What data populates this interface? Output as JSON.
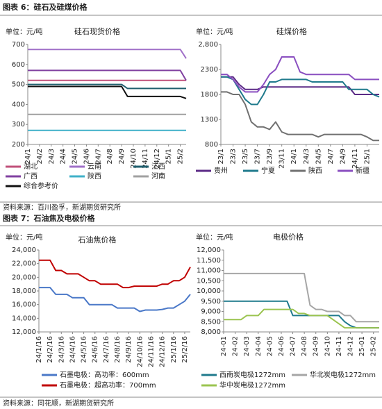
{
  "figure6_title": "图表 6：硅石及硅煤价格",
  "figure6_source": "资料来源：百川盈孚，新湖期货研究所",
  "figure7_title": "图表 7：石油焦及电极价格",
  "figure7_source": "资料来源：同花顺，新湖期货研究所",
  "chart_data": [
    {
      "type": "line",
      "title": "硅石现货价格",
      "unit": "单位：元/吨",
      "categories": [
        "24/1",
        null,
        "24/2",
        null,
        "24/3",
        null,
        "24/4",
        null,
        "24/5",
        null,
        "24/6",
        null,
        "24/7",
        null,
        "24/8",
        null,
        "24/9",
        null,
        "24/10",
        null,
        "24/11",
        null,
        "24/12",
        null,
        "25/1",
        null,
        "25/2",
        null
      ],
      "ylim": [
        200,
        700
      ],
      "yticks": [
        200,
        300,
        400,
        500,
        600,
        700
      ],
      "grid": false,
      "series": [
        {
          "name": "湖北",
          "color": "#c0507a",
          "values": [
            520,
            520,
            520,
            520,
            520,
            520,
            520,
            520,
            520,
            520,
            520,
            520,
            520,
            520,
            520,
            520,
            520,
            520,
            520,
            520,
            520,
            520,
            520,
            520,
            520,
            520,
            520,
            520
          ]
        },
        {
          "name": "云南",
          "color": "#a070c8",
          "values": [
            675,
            675,
            675,
            675,
            675,
            675,
            675,
            675,
            675,
            675,
            675,
            675,
            675,
            675,
            675,
            675,
            675,
            675,
            675,
            675,
            675,
            675,
            675,
            675,
            675,
            675,
            675,
            630
          ]
        },
        {
          "name": "江西",
          "color": "#1f5f6e",
          "values": [
            500,
            500,
            500,
            500,
            500,
            500,
            500,
            500,
            500,
            500,
            500,
            500,
            500,
            500,
            500,
            500,
            500,
            480,
            480,
            480,
            480,
            480,
            480,
            480,
            480,
            480,
            480,
            480
          ]
        },
        {
          "name": "广西",
          "color": "#8040a0",
          "values": [
            570,
            570,
            570,
            570,
            570,
            570,
            570,
            570,
            570,
            570,
            570,
            570,
            570,
            570,
            570,
            570,
            570,
            570,
            570,
            570,
            570,
            570,
            570,
            570,
            570,
            570,
            570,
            520
          ]
        },
        {
          "name": "陕西",
          "color": "#3fb0c8",
          "values": [
            270,
            270,
            270,
            270,
            270,
            270,
            270,
            270,
            270,
            270,
            270,
            270,
            270,
            270,
            270,
            270,
            270,
            270,
            270,
            270,
            270,
            270,
            270,
            270,
            270,
            270,
            270,
            270
          ]
        },
        {
          "name": "河南",
          "color": "#a0a0a0",
          "values": [
            350,
            350,
            350,
            350,
            350,
            350,
            350,
            350,
            350,
            350,
            350,
            350,
            350,
            350,
            350,
            350,
            350,
            350,
            350,
            350,
            350,
            350,
            350,
            350,
            350,
            350,
            350,
            350
          ]
        },
        {
          "name": "综合参考价",
          "color": "#111111",
          "values": [
            490,
            490,
            490,
            490,
            490,
            490,
            490,
            490,
            490,
            490,
            490,
            490,
            490,
            490,
            490,
            490,
            490,
            440,
            440,
            440,
            440,
            440,
            440,
            440,
            440,
            440,
            440,
            430
          ]
        }
      ]
    },
    {
      "type": "line",
      "title": "硅煤价格",
      "unit": "单位：元/吨",
      "categories": [
        "23/1",
        null,
        "23/3",
        null,
        "23/5",
        null,
        "23/7",
        null,
        "23/9",
        null,
        "23/11",
        null,
        "24/1",
        null,
        "24/3",
        null,
        "24/5",
        null,
        "24/7",
        null,
        "24/9",
        null,
        "24/11",
        null,
        "25/1",
        null,
        null
      ],
      "ylim": [
        800,
        2800
      ],
      "yticks": [
        800,
        1300,
        1800,
        2300,
        {
          "value": 2800,
          "label": "2,800"
        }
      ],
      "grid": false,
      "series": [
        {
          "name": "贵州",
          "color": "#5b2a86",
          "values": [
            2150,
            2150,
            2150,
            2000,
            1900,
            1900,
            1900,
            1950,
            1950,
            1950,
            1950,
            1950,
            1950,
            1950,
            1950,
            1950,
            1950,
            1950,
            1950,
            1950,
            1950,
            1950,
            1800,
            1800,
            1800,
            1800,
            1800
          ]
        },
        {
          "name": "宁夏",
          "color": "#1f7a8c",
          "values": [
            2150,
            2150,
            2100,
            1900,
            1700,
            1600,
            1600,
            1800,
            2050,
            2050,
            2100,
            2100,
            2100,
            2100,
            2100,
            2050,
            2050,
            2050,
            2050,
            2050,
            2050,
            1900,
            1900,
            1900,
            1900,
            1800,
            1750
          ]
        },
        {
          "name": "陕西",
          "color": "#707070",
          "values": [
            1850,
            1850,
            1800,
            1800,
            1600,
            1250,
            1150,
            1150,
            1100,
            1250,
            1050,
            1000,
            1000,
            1000,
            1000,
            1000,
            950,
            1000,
            1000,
            1000,
            1000,
            1000,
            1000,
            1000,
            950,
            880,
            880
          ]
        },
        {
          "name": "新疆",
          "color": "#8a4fc0",
          "values": [
            2200,
            2200,
            2100,
            1950,
            1850,
            1850,
            1850,
            2000,
            2200,
            2300,
            2550,
            2550,
            2550,
            2250,
            2200,
            2200,
            2200,
            2200,
            2200,
            2200,
            2200,
            2200,
            2100,
            2100,
            2100,
            2100,
            2100
          ]
        }
      ]
    },
    {
      "type": "line",
      "title": "石油焦价格",
      "unit": "单位：元/吨",
      "categories": [
        "24/1/16",
        null,
        "24/2/16",
        null,
        "24/3/16",
        null,
        "24/4/16",
        null,
        "24/5/16",
        null,
        "24/6/16",
        null,
        "24/7/16",
        null,
        "24/8/16",
        null,
        "24/9/16",
        null,
        "24/10/16",
        null,
        "24/11/16",
        null,
        "24/12/16",
        null,
        "25/1/16",
        null,
        "25/2/16",
        null
      ],
      "ylim": [
        12000,
        24000
      ],
      "yticks": [
        {
          "value": 12000,
          "label": "12,000"
        },
        {
          "value": 14000,
          "label": "14,000"
        },
        {
          "value": 16000,
          "label": "16,000"
        },
        {
          "value": 18000,
          "label": "18,000"
        },
        {
          "value": 20000,
          "label": "20,000"
        },
        {
          "value": 22000,
          "label": "22,000"
        },
        {
          "value": 24000,
          "label": "24,000"
        }
      ],
      "grid": false,
      "series": [
        {
          "name": "石墨电极：高功率：600mm",
          "color": "#4a78c8",
          "values": [
            18500,
            18500,
            18500,
            17500,
            17500,
            17500,
            17000,
            17000,
            17000,
            16000,
            16000,
            16000,
            16000,
            16000,
            15500,
            15500,
            15500,
            15500,
            15000,
            15200,
            15200,
            15200,
            15300,
            15500,
            15500,
            16000,
            16500,
            17500
          ]
        },
        {
          "name": "石墨电极：超高功率：700mm",
          "color": "#c00000",
          "values": [
            22500,
            22500,
            22500,
            21000,
            21000,
            20500,
            20500,
            20500,
            20000,
            19500,
            19500,
            19000,
            19000,
            19000,
            19000,
            18500,
            18500,
            18700,
            18700,
            18700,
            18700,
            18700,
            19000,
            19000,
            19500,
            19500,
            20000,
            21500
          ]
        }
      ]
    },
    {
      "type": "line",
      "title": "电极价格",
      "unit": "单位：元/吨",
      "categories": [
        "24-01",
        null,
        "24-02",
        null,
        "24-03",
        null,
        "24-04",
        null,
        "24-05",
        null,
        "24-06",
        null,
        "24-07",
        null,
        "24-08",
        null,
        "24-09",
        null,
        "24-10",
        null,
        "24-11",
        null,
        "24-12",
        null,
        "25-01",
        null,
        "25-02",
        null
      ],
      "ylim": [
        8000,
        12000
      ],
      "yticks": [
        {
          "value": 8000,
          "label": "8,000"
        },
        {
          "value": 8500,
          "label": "8,500"
        },
        {
          "value": 9000,
          "label": "9,000"
        },
        {
          "value": 9500,
          "label": "9,500"
        },
        {
          "value": 10000,
          "label": "10,000"
        },
        {
          "value": 10500,
          "label": "10,500"
        },
        {
          "value": 11000,
          "label": "11,000"
        },
        {
          "value": 11500,
          "label": "11,500"
        },
        {
          "value": 12000,
          "label": "12,000"
        }
      ],
      "grid": false,
      "series": [
        {
          "name": "西南炭电极1272mm",
          "color": "#1f7a8c",
          "values": [
            9500,
            9500,
            9500,
            9500,
            9500,
            9500,
            9500,
            9500,
            9500,
            9500,
            9500,
            9500,
            8800,
            8800,
            8800,
            8800,
            8800,
            8800,
            8800,
            8800,
            8800,
            8500,
            8300,
            8200,
            8200,
            8200,
            8200,
            8200
          ]
        },
        {
          "name": "华北炭电极1272mm",
          "color": "#a6a6a6",
          "values": [
            10850,
            10850,
            10850,
            10850,
            10850,
            10850,
            10850,
            10850,
            10850,
            10850,
            10850,
            10850,
            10850,
            10850,
            10850,
            9300,
            9100,
            9100,
            9000,
            9000,
            9000,
            8800,
            8800,
            8500,
            8500,
            8500,
            8500,
            8500
          ]
        },
        {
          "name": "华中炭电极1272mm",
          "color": "#9bc450",
          "values": [
            8600,
            8600,
            8600,
            8600,
            8800,
            8800,
            8800,
            9100,
            9100,
            9100,
            9100,
            9100,
            9100,
            8900,
            8900,
            8800,
            8800,
            8800,
            8800,
            8600,
            8400,
            8200,
            8200,
            8200,
            8200,
            8200,
            8200,
            8200
          ]
        }
      ]
    }
  ]
}
